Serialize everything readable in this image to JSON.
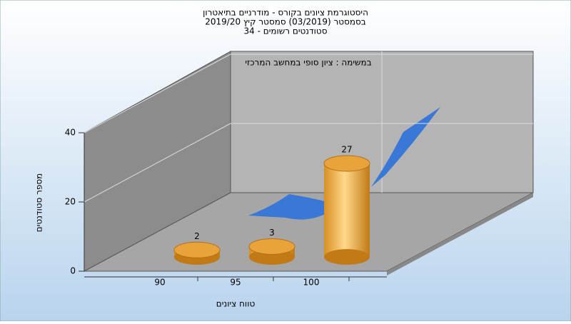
{
  "chart_data": {
    "type": "bar",
    "title": "היסטוגרמת ציונים בקורס - מודרניים בתיאטרון",
    "subtitle": [
      "בסמסטר  (03/2019)  סמסטר קיץ 2019/20",
      "סטודנטים רשומים - 34"
    ],
    "annotation": "במשימה : ציון סופי במחשב המרכזי",
    "x_label": "טווח ציונים",
    "y_label": "מספר סטודנטים",
    "categories": [
      "90",
      "95",
      "100"
    ],
    "values": [
      2,
      3,
      27
    ],
    "color": "#e8a33a",
    "ylim": [
      0,
      40
    ],
    "yticks": [
      0,
      20,
      40
    ],
    "grid": true
  }
}
